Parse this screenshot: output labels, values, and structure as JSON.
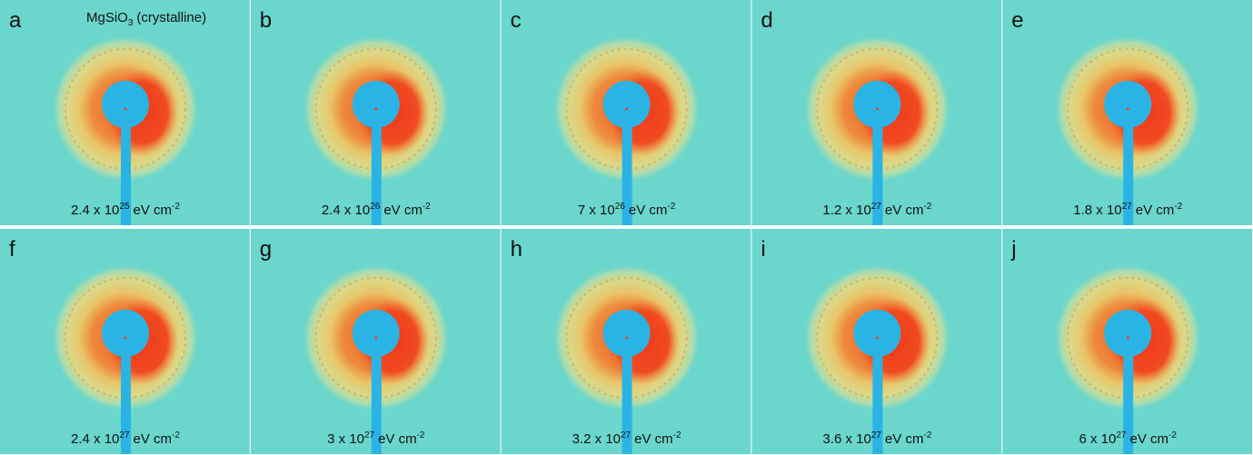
{
  "title": {
    "formula": "MgSiO",
    "subscript": "3",
    "note": "(crystalline)"
  },
  "panels": [
    {
      "label": "a",
      "dose": {
        "mantissa": "2.4 x 10",
        "exponent": "25",
        "unit": "eV cm",
        "unit_exponent": "-2"
      }
    },
    {
      "label": "b",
      "dose": {
        "mantissa": "2.4 x 10",
        "exponent": "26",
        "unit": "eV cm",
        "unit_exponent": "-2"
      }
    },
    {
      "label": "c",
      "dose": {
        "mantissa": "7 x 10",
        "exponent": "26",
        "unit": "eV cm",
        "unit_exponent": "-2"
      }
    },
    {
      "label": "d",
      "dose": {
        "mantissa": "1.2 x 10",
        "exponent": "27",
        "unit": "eV cm",
        "unit_exponent": "-2"
      }
    },
    {
      "label": "e",
      "dose": {
        "mantissa": "1.8 x 10",
        "exponent": "27",
        "unit": "eV cm",
        "unit_exponent": "-2"
      }
    },
    {
      "label": "f",
      "dose": {
        "mantissa": "2.4 x 10",
        "exponent": "27",
        "unit": "eV cm",
        "unit_exponent": "-2"
      }
    },
    {
      "label": "g",
      "dose": {
        "mantissa": "3 x 10",
        "exponent": "27",
        "unit": "eV cm",
        "unit_exponent": "-2"
      }
    },
    {
      "label": "h",
      "dose": {
        "mantissa": "3.2 x 10",
        "exponent": "27",
        "unit": "eV cm",
        "unit_exponent": "-2"
      }
    },
    {
      "label": "i",
      "dose": {
        "mantissa": "3.6 x 10",
        "exponent": "27",
        "unit": "eV cm",
        "unit_exponent": "-2"
      }
    },
    {
      "label": "j",
      "dose": {
        "mantissa": "6 x 10",
        "exponent": "27",
        "unit": "eV cm",
        "unit_exponent": "-2"
      }
    }
  ]
}
